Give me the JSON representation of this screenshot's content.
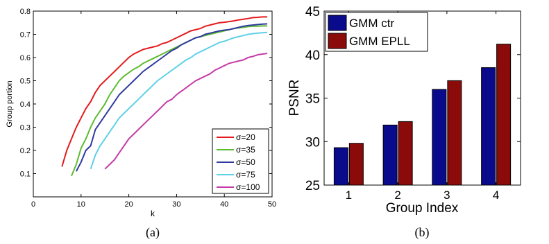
{
  "chart_data": [
    {
      "type": "line",
      "caption": "(a)",
      "xlabel": "k",
      "ylabel": "Group portion",
      "xlim": [
        0,
        50
      ],
      "ylim": [
        0,
        0.8
      ],
      "xticks": [
        0,
        10,
        20,
        30,
        40,
        50
      ],
      "yticks": [
        0.1,
        0.2,
        0.3,
        0.4,
        0.5,
        0.6,
        0.7,
        0.8
      ],
      "grid": false,
      "legend_position": "bottom-right",
      "series": [
        {
          "name": "σ=20",
          "color": "#e41a1c",
          "x": [
            6,
            7,
            8,
            9,
            10,
            11,
            12,
            13,
            14,
            15,
            16,
            17,
            18,
            19,
            20,
            21,
            22,
            23,
            24,
            25,
            26,
            27,
            28,
            29,
            30,
            31,
            32,
            33,
            34,
            35,
            36,
            37,
            38,
            39,
            40,
            41,
            42,
            43,
            44,
            45,
            46,
            47,
            48,
            49
          ],
          "y": [
            0.13,
            0.2,
            0.25,
            0.3,
            0.34,
            0.38,
            0.41,
            0.45,
            0.48,
            0.5,
            0.52,
            0.54,
            0.56,
            0.58,
            0.6,
            0.615,
            0.625,
            0.635,
            0.64,
            0.645,
            0.65,
            0.66,
            0.665,
            0.675,
            0.685,
            0.695,
            0.705,
            0.715,
            0.72,
            0.725,
            0.735,
            0.74,
            0.745,
            0.75,
            0.752,
            0.755,
            0.758,
            0.762,
            0.765,
            0.768,
            0.772,
            0.773,
            0.775,
            0.775
          ]
        },
        {
          "name": "σ=35",
          "color": "#5dbb2f",
          "x": [
            8,
            9,
            10,
            11,
            12,
            13,
            14,
            15,
            16,
            17,
            18,
            19,
            20,
            21,
            22,
            23,
            24,
            25,
            26,
            27,
            28,
            29,
            30,
            31,
            32,
            33,
            34,
            35,
            36,
            37,
            38,
            39,
            40,
            41,
            42,
            43,
            44,
            45,
            46,
            47,
            48,
            49
          ],
          "y": [
            0.09,
            0.14,
            0.21,
            0.25,
            0.3,
            0.34,
            0.37,
            0.4,
            0.44,
            0.47,
            0.5,
            0.52,
            0.535,
            0.55,
            0.56,
            0.575,
            0.585,
            0.595,
            0.605,
            0.615,
            0.625,
            0.635,
            0.645,
            0.655,
            0.665,
            0.675,
            0.685,
            0.69,
            0.695,
            0.7,
            0.705,
            0.71,
            0.715,
            0.72,
            0.725,
            0.728,
            0.73,
            0.733,
            0.735,
            0.735,
            0.736,
            0.736
          ]
        },
        {
          "name": "σ=50",
          "color": "#2e3a9e",
          "x": [
            9,
            10,
            11,
            12,
            13,
            14,
            15,
            16,
            17,
            18,
            19,
            20,
            21,
            22,
            23,
            24,
            25,
            26,
            27,
            28,
            29,
            30,
            31,
            32,
            33,
            34,
            35,
            36,
            37,
            38,
            39,
            40,
            41,
            42,
            43,
            44,
            45,
            46,
            47,
            48,
            49
          ],
          "y": [
            0.11,
            0.15,
            0.2,
            0.22,
            0.29,
            0.32,
            0.35,
            0.38,
            0.41,
            0.44,
            0.46,
            0.48,
            0.5,
            0.52,
            0.54,
            0.555,
            0.57,
            0.585,
            0.6,
            0.615,
            0.63,
            0.64,
            0.655,
            0.665,
            0.675,
            0.685,
            0.69,
            0.7,
            0.705,
            0.71,
            0.715,
            0.718,
            0.72,
            0.725,
            0.73,
            0.735,
            0.738,
            0.74,
            0.742,
            0.744,
            0.745
          ]
        },
        {
          "name": "σ=75",
          "color": "#5fd0e6",
          "x": [
            12,
            13,
            14,
            15,
            16,
            17,
            18,
            19,
            20,
            21,
            22,
            23,
            24,
            25,
            26,
            27,
            28,
            29,
            30,
            31,
            32,
            33,
            34,
            35,
            36,
            37,
            38,
            39,
            40,
            41,
            42,
            43,
            44,
            45,
            46,
            47,
            48,
            49
          ],
          "y": [
            0.12,
            0.18,
            0.22,
            0.25,
            0.28,
            0.31,
            0.34,
            0.36,
            0.38,
            0.4,
            0.42,
            0.44,
            0.46,
            0.48,
            0.5,
            0.515,
            0.53,
            0.545,
            0.56,
            0.575,
            0.59,
            0.6,
            0.615,
            0.625,
            0.635,
            0.645,
            0.655,
            0.665,
            0.67,
            0.678,
            0.685,
            0.69,
            0.695,
            0.7,
            0.703,
            0.705,
            0.707,
            0.708
          ]
        },
        {
          "name": "σ=100",
          "color": "#c43aa6",
          "x": [
            15,
            16,
            17,
            18,
            19,
            20,
            21,
            22,
            23,
            24,
            25,
            26,
            27,
            28,
            29,
            30,
            31,
            32,
            33,
            34,
            35,
            36,
            37,
            38,
            39,
            40,
            41,
            42,
            43,
            44,
            45,
            46,
            47,
            48,
            49
          ],
          "y": [
            0.12,
            0.14,
            0.16,
            0.19,
            0.22,
            0.25,
            0.27,
            0.29,
            0.31,
            0.33,
            0.35,
            0.37,
            0.39,
            0.41,
            0.42,
            0.44,
            0.455,
            0.47,
            0.485,
            0.5,
            0.51,
            0.52,
            0.53,
            0.545,
            0.555,
            0.565,
            0.575,
            0.58,
            0.585,
            0.59,
            0.6,
            0.605,
            0.612,
            0.615,
            0.618
          ]
        }
      ]
    },
    {
      "type": "bar",
      "caption": "(b)",
      "xlabel": "Group Index",
      "ylabel": "PSNR",
      "categories": [
        "1",
        "2",
        "3",
        "4"
      ],
      "ylim": [
        25,
        45
      ],
      "yticks": [
        25,
        30,
        35,
        40,
        45
      ],
      "grid": false,
      "legend_position": "top-left",
      "series": [
        {
          "name": "GMM ctr",
          "color": "#0a0a8c",
          "values": [
            29.3,
            31.9,
            36.0,
            38.5
          ]
        },
        {
          "name": "GMM EPLL",
          "color": "#8b0a0a",
          "values": [
            29.8,
            32.3,
            37.0,
            41.2
          ]
        }
      ]
    }
  ]
}
